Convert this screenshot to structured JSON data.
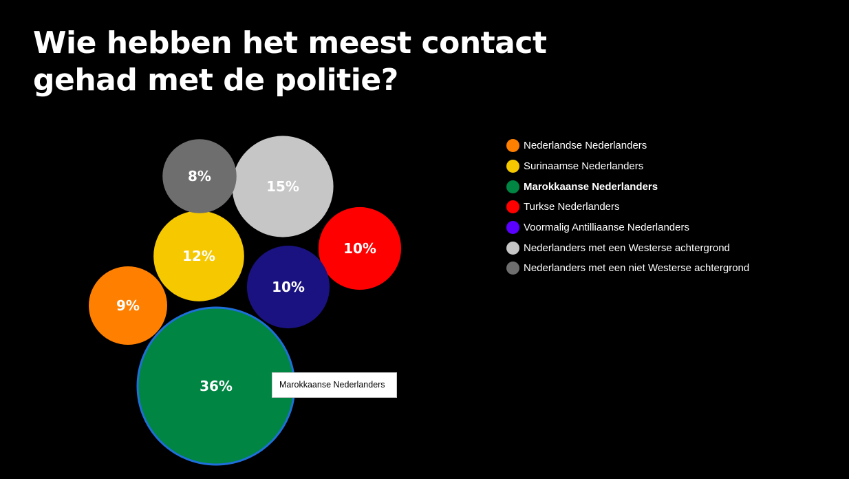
{
  "title": "Wie hebben het meest contact gehad met de politie?",
  "tooltip": "Marokkaanse Nederlanders",
  "chart_data": {
    "type": "bubble",
    "title": "Wie hebben het meest contact gehad met de politie?",
    "unit": "%",
    "legend_position": "right",
    "highlighted": "Marokkaanse Nederlanders",
    "series": [
      {
        "name": "Nederlandse Nederlanders",
        "value": 9,
        "label": "9%",
        "color": "#FF8000"
      },
      {
        "name": "Surinaamse Nederlanders",
        "value": 12,
        "label": "12%",
        "color": "#F5C800"
      },
      {
        "name": "Marokkaanse Nederlanders",
        "value": 36,
        "label": "36%",
        "color": "#008542"
      },
      {
        "name": "Turkse Nederlanders",
        "value": 10,
        "label": "10%",
        "color": "#FF0000"
      },
      {
        "name": "Voormalig Antilliaanse Nederlanders",
        "value": 10,
        "label": "10%",
        "color": "#1A1280",
        "legend_color": "#5A00FF"
      },
      {
        "name": "Nederlanders met een Westerse achtergrond",
        "value": 15,
        "label": "15%",
        "color": "#C6C6C6"
      },
      {
        "name": "Nederlanders met een niet Westerse achtergrond",
        "value": 8,
        "label": "8%",
        "color": "#6E6E6E"
      }
    ],
    "highlight_outline_color": "#1E6FD9"
  }
}
